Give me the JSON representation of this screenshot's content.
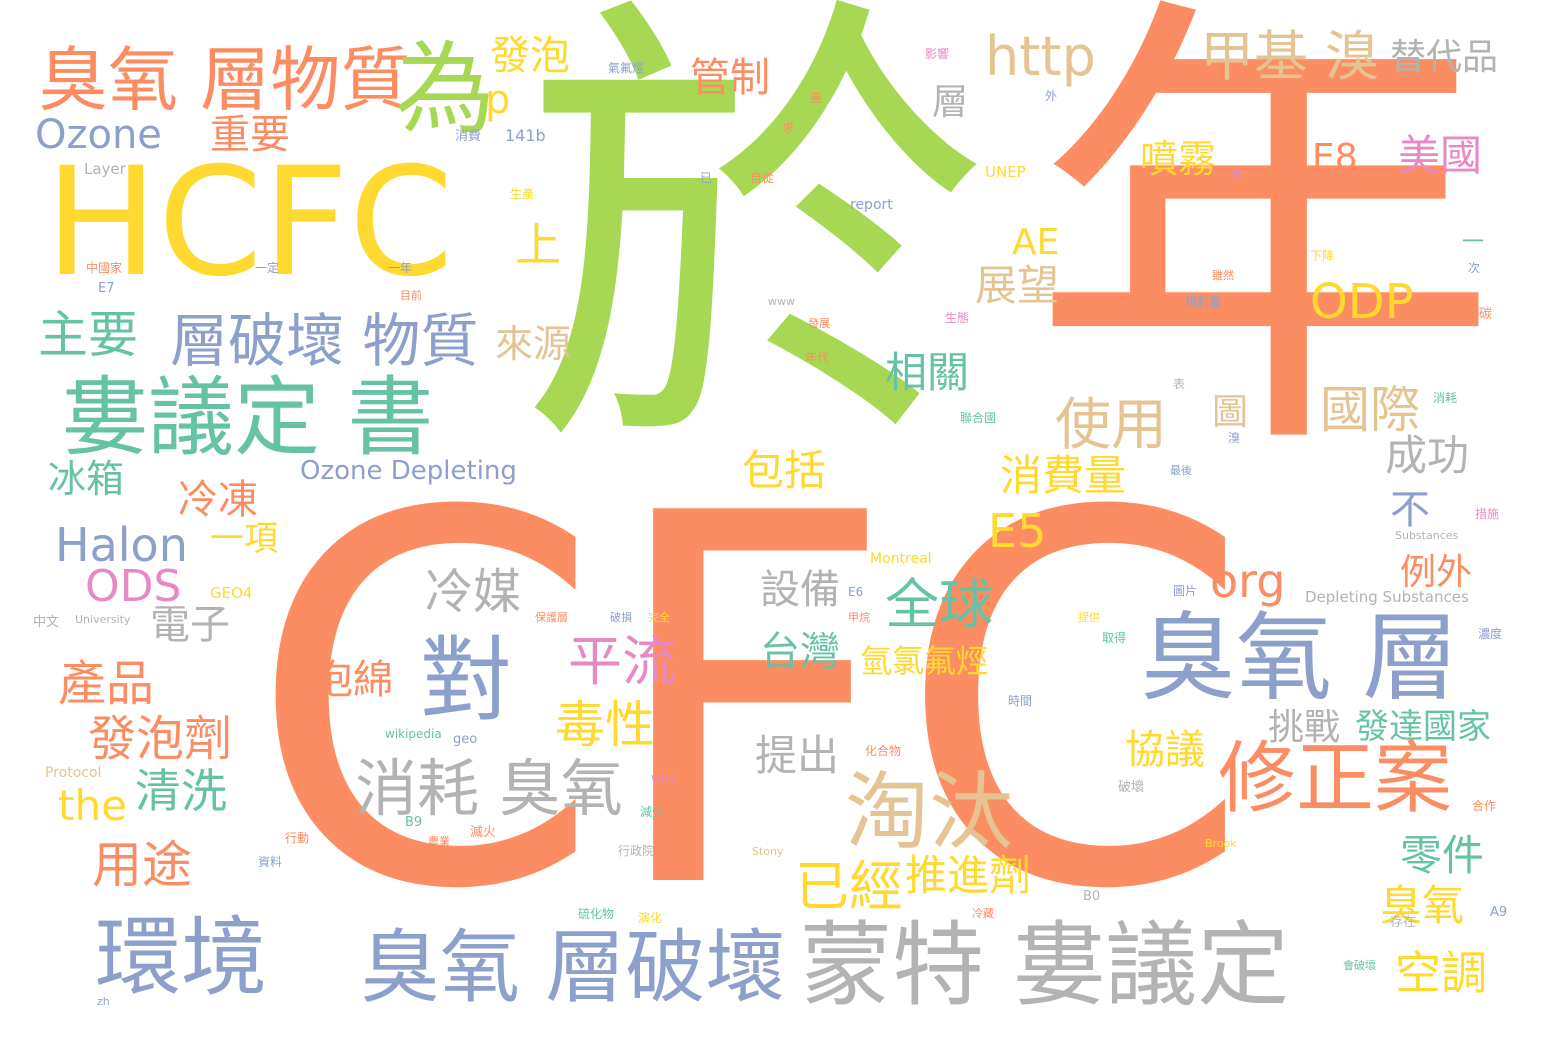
{
  "palette": {
    "orange": "#fc8d62",
    "green": "#a6d854",
    "yellow": "#ffd92f",
    "blue": "#8da0cb",
    "teal": "#66c2a5",
    "pink": "#e78ac3",
    "tan": "#e5c494",
    "gray": "#b3b3b3"
  },
  "words": [
    {
      "text": "CFC",
      "color": "orange"
    },
    {
      "text": "於",
      "color": "green"
    },
    {
      "text": "年",
      "color": "orange"
    },
    {
      "text": "HCFC",
      "color": "yellow"
    },
    {
      "text": "婁議定 書",
      "color": "teal"
    },
    {
      "text": "臭氧 層物質",
      "color": "orange"
    },
    {
      "text": "為",
      "color": "green"
    },
    {
      "text": "臭氧 層",
      "color": "blue"
    },
    {
      "text": "蒙特 婁議定",
      "color": "gray"
    },
    {
      "text": "臭氧 層破壞",
      "color": "blue"
    },
    {
      "text": "環境",
      "color": "blue"
    },
    {
      "text": "淘汰",
      "color": "tan"
    },
    {
      "text": "修正案",
      "color": "orange"
    },
    {
      "text": "對",
      "color": "blue"
    },
    {
      "text": "消耗 臭氧",
      "color": "gray"
    },
    {
      "text": "層破壞 物質",
      "color": "blue"
    },
    {
      "text": "http",
      "color": "tan"
    },
    {
      "text": "甲基 溴",
      "color": "tan"
    },
    {
      "text": "全球",
      "color": "teal"
    },
    {
      "text": "平流",
      "color": "pink"
    },
    {
      "text": "毒性",
      "color": "yellow"
    },
    {
      "text": "Ozone",
      "color": "blue"
    },
    {
      "text": "Halon",
      "color": "blue"
    },
    {
      "text": "ODS",
      "color": "pink"
    },
    {
      "text": "ODP",
      "color": "yellow"
    },
    {
      "text": "產品",
      "color": "orange"
    },
    {
      "text": "發泡劑",
      "color": "orange"
    },
    {
      "text": "冷媒",
      "color": "gray"
    },
    {
      "text": "使用",
      "color": "tan"
    },
    {
      "text": "國際",
      "color": "tan"
    },
    {
      "text": "主要",
      "color": "teal"
    },
    {
      "text": "用途",
      "color": "orange"
    },
    {
      "text": "清洗",
      "color": "teal"
    },
    {
      "text": "已經",
      "color": "yellow"
    },
    {
      "text": "推進劑",
      "color": "yellow"
    },
    {
      "text": "空調",
      "color": "yellow"
    },
    {
      "text": "零件",
      "color": "teal"
    },
    {
      "text": "臭氧",
      "color": "yellow"
    },
    {
      "text": "展望",
      "color": "tan"
    },
    {
      "text": "相關",
      "color": "teal"
    },
    {
      "text": "包括",
      "color": "yellow"
    },
    {
      "text": "消費量",
      "color": "yellow"
    },
    {
      "text": "E5",
      "color": "yellow"
    },
    {
      "text": "org",
      "color": "orange"
    },
    {
      "text": "the",
      "color": "yellow"
    },
    {
      "text": "泡綿",
      "color": "orange"
    },
    {
      "text": "設備",
      "color": "gray"
    },
    {
      "text": "台灣",
      "color": "teal"
    },
    {
      "text": "氫氯氟烴",
      "color": "yellow"
    },
    {
      "text": "電子",
      "color": "gray"
    },
    {
      "text": "冷凍",
      "color": "orange"
    },
    {
      "text": "冰箱",
      "color": "teal"
    },
    {
      "text": "來源",
      "color": "tan"
    },
    {
      "text": "重要",
      "color": "orange"
    },
    {
      "text": "管制",
      "color": "orange"
    },
    {
      "text": "發泡",
      "color": "yellow"
    },
    {
      "text": "替代品",
      "color": "gray"
    },
    {
      "text": "美國",
      "color": "pink"
    },
    {
      "text": "E8",
      "color": "orange"
    },
    {
      "text": "噴霧",
      "color": "yellow"
    },
    {
      "text": "成功",
      "color": "gray"
    },
    {
      "text": "不",
      "color": "blue"
    },
    {
      "text": "例外",
      "color": "orange"
    },
    {
      "text": "協議",
      "color": "yellow"
    },
    {
      "text": "挑戰",
      "color": "gray"
    },
    {
      "text": "發達國家",
      "color": "teal"
    },
    {
      "text": "提出",
      "color": "gray"
    },
    {
      "text": "上",
      "color": "yellow"
    },
    {
      "text": "p",
      "color": "yellow"
    },
    {
      "text": "AE",
      "color": "yellow"
    },
    {
      "text": "一項",
      "color": "yellow"
    },
    {
      "text": "層",
      "color": "gray"
    },
    {
      "text": "圖",
      "color": "tan"
    },
    {
      "text": "Ozone Depleting",
      "color": "blue"
    },
    {
      "text": "Depleting Substances",
      "color": "gray"
    },
    {
      "text": "Layer",
      "color": "gray"
    },
    {
      "text": "141b",
      "color": "blue"
    },
    {
      "text": "消費",
      "color": "blue"
    },
    {
      "text": "氣氟烴",
      "color": "blue"
    },
    {
      "text": "影響",
      "color": "pink"
    },
    {
      "text": "report",
      "color": "blue"
    },
    {
      "text": "UNEP",
      "color": "yellow"
    },
    {
      "text": "E7",
      "color": "blue"
    },
    {
      "text": "中國家",
      "color": "orange"
    },
    {
      "text": "GEO4",
      "color": "yellow"
    },
    {
      "text": "University",
      "color": "gray"
    },
    {
      "text": "中文",
      "color": "gray"
    },
    {
      "text": "Montreal",
      "color": "yellow"
    },
    {
      "text": "Protocol",
      "color": "tan"
    },
    {
      "text": "wikipedia",
      "color": "teal"
    },
    {
      "text": "geo",
      "color": "blue"
    },
    {
      "text": "wiki",
      "color": "pink"
    },
    {
      "text": "B9",
      "color": "teal"
    },
    {
      "text": "B0",
      "color": "gray"
    },
    {
      "text": "A9",
      "color": "blue"
    },
    {
      "text": "Stony",
      "color": "tan"
    },
    {
      "text": "Brook",
      "color": "yellow"
    },
    {
      "text": "Substances",
      "color": "gray"
    },
    {
      "text": "四氯化碳",
      "color": "orange"
    },
    {
      "text": "行動",
      "color": "orange"
    },
    {
      "text": "滅火",
      "color": "orange"
    },
    {
      "text": "減少",
      "color": "teal"
    },
    {
      "text": "破壞",
      "color": "gray"
    },
    {
      "text": "存在",
      "color": "gray"
    },
    {
      "text": "會破壞",
      "color": "teal"
    },
    {
      "text": "化合物",
      "color": "orange"
    },
    {
      "text": "聯合國",
      "color": "teal"
    },
    {
      "text": "圖片",
      "color": "blue"
    },
    {
      "text": "時間",
      "color": "blue"
    },
    {
      "text": "年代",
      "color": "orange"
    },
    {
      "text": "一年",
      "color": "blue"
    },
    {
      "text": "一定",
      "color": "blue"
    },
    {
      "text": "目前",
      "color": "orange"
    },
    {
      "text": "發展",
      "color": "orange"
    },
    {
      "text": "生產",
      "color": "yellow"
    },
    {
      "text": "行政院",
      "color": "gray"
    },
    {
      "text": "資料",
      "color": "blue"
    },
    {
      "text": "硫化物",
      "color": "teal"
    },
    {
      "text": "演化",
      "color": "yellow"
    },
    {
      "text": "冷藏",
      "color": "orange"
    },
    {
      "text": "農業",
      "color": "orange"
    },
    {
      "text": "保護層",
      "color": "orange"
    },
    {
      "text": "完全",
      "color": "yellow"
    },
    {
      "text": "甲烷",
      "color": "orange"
    },
    {
      "text": "破損",
      "color": "blue"
    },
    {
      "text": "提供",
      "color": "yellow"
    },
    {
      "text": "濃度",
      "color": "blue"
    },
    {
      "text": "合作",
      "color": "orange"
    },
    {
      "text": "措施",
      "color": "pink"
    },
    {
      "text": "消耗",
      "color": "teal"
    },
    {
      "text": "最後",
      "color": "blue"
    },
    {
      "text": "下降",
      "color": "yellow"
    },
    {
      "text": "雖然",
      "color": "orange"
    },
    {
      "text": "規劃署",
      "color": "blue"
    },
    {
      "text": "已",
      "color": "blue"
    },
    {
      "text": "自從",
      "color": "orange"
    },
    {
      "text": "外",
      "color": "blue"
    },
    {
      "text": "求",
      "color": "orange"
    },
    {
      "text": "E6",
      "color": "blue"
    },
    {
      "text": "一",
      "color": "teal"
    },
    {
      "text": "次",
      "color": "blue"
    },
    {
      "text": "表",
      "color": "gray"
    },
    {
      "text": "氣",
      "color": "pink"
    },
    {
      "text": "溴",
      "color": "blue"
    },
    {
      "text": "量",
      "color": "orange"
    },
    {
      "text": "生態",
      "color": "pink"
    },
    {
      "text": "取得",
      "color": "teal"
    },
    {
      "text": "www",
      "color": "gray"
    },
    {
      "text": "zh",
      "color": "blue"
    }
  ]
}
